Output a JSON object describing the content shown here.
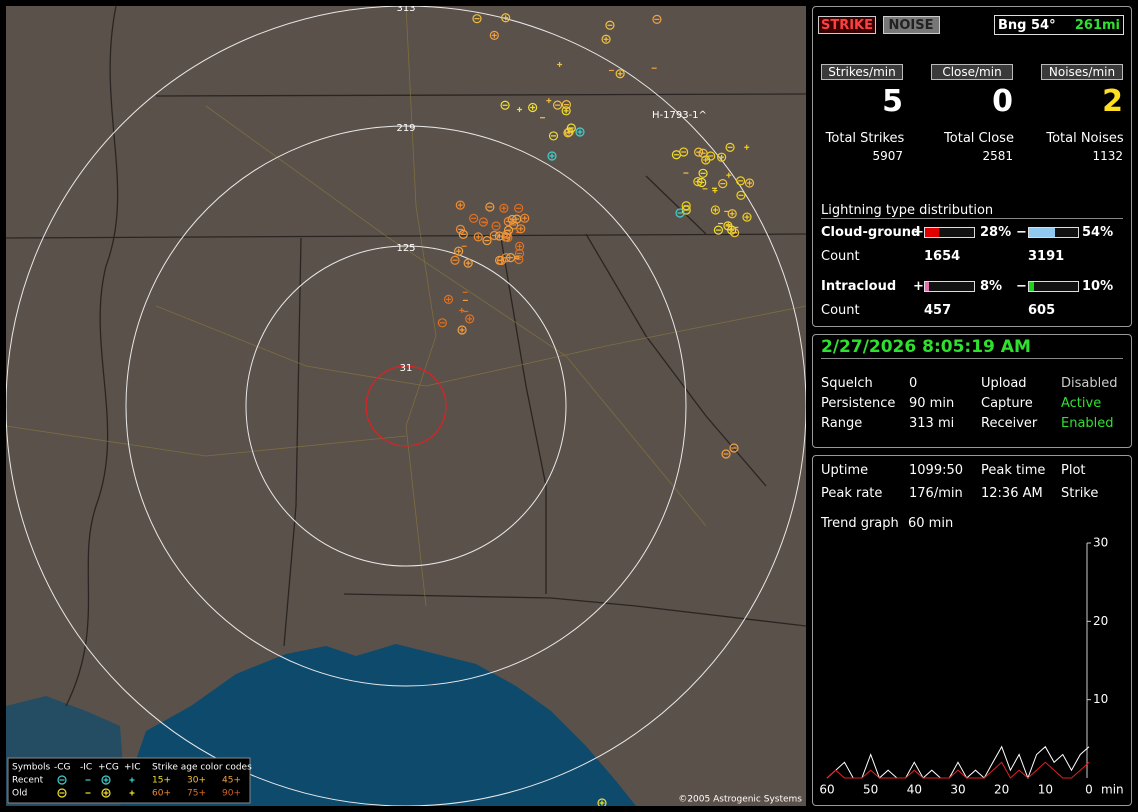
{
  "map": {
    "ring_labels": [
      "313",
      "219",
      "125",
      "31"
    ],
    "station_label": "H-1793-1^",
    "legend": {
      "symbols": "Symbols",
      "columns": [
        "-CG",
        "-IC",
        "+CG",
        "+IC"
      ],
      "age_title": "Strike age color codes",
      "rows": [
        "Recent",
        "Old"
      ],
      "recent_ages": [
        "15+",
        "30+",
        "45+"
      ],
      "old_ages": [
        "60+",
        "75+",
        "90+"
      ]
    },
    "copyright": "©2005 Astrogenic Systems"
  },
  "status": {
    "buttons": [
      "STRIKE",
      "NOISE"
    ],
    "bearing": "Bng 54°",
    "distance": "261mi",
    "rates": [
      {
        "label": "Strikes/min",
        "value": 5
      },
      {
        "label": "Close/min",
        "value": 0
      },
      {
        "label": "Noises/min",
        "value": 2
      }
    ],
    "totals": [
      {
        "label": "Total Strikes",
        "value": 5907
      },
      {
        "label": "Total Close",
        "value": 2581
      },
      {
        "label": "Total Noises",
        "value": 1132
      }
    ],
    "distribution": {
      "title": "Lightning type distribution",
      "count_label": "Count",
      "rows": [
        {
          "name": "Cloud-ground",
          "positive": {
            "sign": "+",
            "percent": {
              "value": 28,
              "label": "28%"
            },
            "count": 1654
          },
          "negative": {
            "sign": "−",
            "percent": {
              "value": 54,
              "label": "54%"
            },
            "count": 3191
          }
        },
        {
          "name": "Intracloud",
          "positive": {
            "sign": "+",
            "percent": {
              "value": 8,
              "label": "8%"
            },
            "count": 457
          },
          "negative": {
            "sign": "−",
            "percent": {
              "value": 10,
              "label": "10%"
            },
            "count": 605
          }
        }
      ]
    }
  },
  "settings": {
    "datetime": "2/27/2026 8:05:19 AM",
    "rows": [
      [
        "Squelch",
        0,
        "Upload",
        "Disabled"
      ],
      [
        "Persistence",
        "90 min",
        "Capture",
        "Active"
      ],
      [
        "Range",
        "313 mi",
        "Receiver",
        "Enabled"
      ]
    ]
  },
  "trend": {
    "rows": [
      [
        "Uptime",
        "1099:50",
        "Peak time",
        "Plot"
      ],
      [
        "Peak rate",
        "176/min",
        "12:36 AM",
        "Strike"
      ]
    ],
    "label": "Trend graph",
    "window": "60 min",
    "chart": {
      "type": "line",
      "x": [
        60,
        58,
        56,
        54,
        52,
        50,
        48,
        46,
        44,
        42,
        40,
        38,
        36,
        34,
        32,
        30,
        28,
        26,
        24,
        22,
        20,
        18,
        16,
        14,
        12,
        10,
        8,
        6,
        4,
        2,
        0
      ],
      "series": [
        {
          "color": "#ffffff",
          "values": [
            0,
            1,
            2,
            0,
            0,
            3,
            0,
            1,
            0,
            0,
            2,
            0,
            1,
            0,
            0,
            2,
            0,
            1,
            0,
            2,
            4,
            1,
            3,
            0,
            3,
            4,
            2,
            3,
            1,
            3,
            4
          ]
        },
        {
          "color": "#e02020",
          "values": [
            0,
            1,
            0,
            0,
            0,
            1,
            0,
            0,
            0,
            0,
            1,
            0,
            0,
            0,
            0,
            1,
            0,
            0,
            0,
            1,
            2,
            0,
            1,
            0,
            1,
            2,
            1,
            0,
            0,
            1,
            2
          ]
        }
      ],
      "xlim": [
        60,
        0
      ],
      "ylim": [
        0,
        30
      ],
      "xticks": [
        60,
        50,
        40,
        30,
        20,
        10,
        0
      ],
      "yticks": [
        10,
        20,
        30
      ],
      "x_unit": "min"
    }
  }
}
